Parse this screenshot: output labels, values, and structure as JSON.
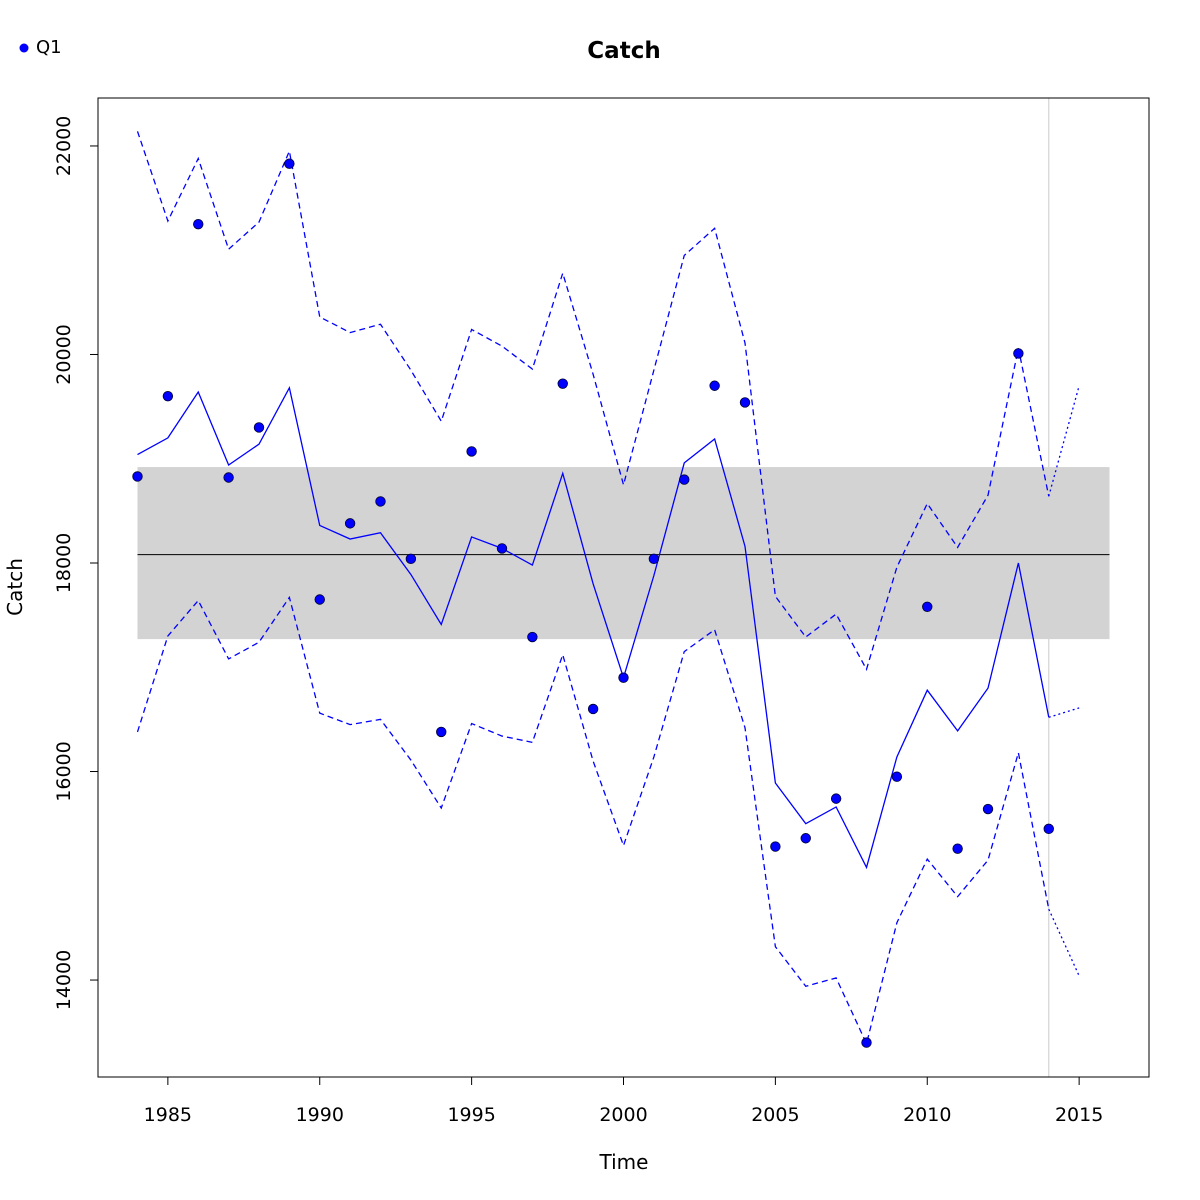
{
  "chart_data": {
    "type": "line",
    "title": "Catch",
    "xlabel": "Time",
    "ylabel": "Catch",
    "xlim": [
      1982.7,
      2017.3
    ],
    "ylim": [
      13070,
      22460
    ],
    "x_ticks": [
      1985,
      1990,
      1995,
      2000,
      2005,
      2010,
      2015
    ],
    "y_ticks": [
      14000,
      16000,
      18000,
      20000,
      22000
    ],
    "legend": {
      "position": "top-left",
      "entries": [
        {
          "label": "Q1",
          "marker": "filled-circle",
          "color": "#0000ff"
        }
      ]
    },
    "band": {
      "x_range": [
        1984,
        2016
      ],
      "y_range": [
        17270,
        18920
      ],
      "color": "#d3d3d3"
    },
    "hline": {
      "y": 18080,
      "x_range": [
        1984,
        2016
      ],
      "color": "#000000"
    },
    "vline": {
      "x": 2014,
      "color": "#d3d3d3"
    },
    "series": [
      {
        "name": "Q1",
        "kind": "points",
        "color": "#0000ff",
        "x": [
          1984,
          1985,
          1986,
          1987,
          1988,
          1989,
          1990,
          1991,
          1992,
          1993,
          1994,
          1995,
          1996,
          1997,
          1998,
          1999,
          2000,
          2001,
          2002,
          2003,
          2004,
          2005,
          2006,
          2007,
          2008,
          2009,
          2010,
          2011,
          2012,
          2013,
          2014
        ],
        "values": [
          18830,
          19600,
          21250,
          18820,
          19300,
          21830,
          17650,
          18380,
          18590,
          18040,
          16380,
          19070,
          18140,
          17290,
          19720,
          16600,
          16900,
          18040,
          18800,
          19700,
          19540,
          15280,
          15360,
          15740,
          13400,
          15950,
          17580,
          15260,
          15640,
          20010,
          15450
        ]
      },
      {
        "kind": "fitted-line",
        "color": "#0000ff",
        "style": "solid",
        "x": [
          1984,
          1985,
          1986,
          1987,
          1988,
          1989,
          1990,
          1991,
          1992,
          1993,
          1994,
          1995,
          1996,
          1997,
          1998,
          1999,
          2000,
          2001,
          2002,
          2003,
          2004,
          2005,
          2006,
          2007,
          2008,
          2009,
          2010,
          2011,
          2012,
          2013,
          2014
        ],
        "values": [
          19040,
          19200,
          19640,
          18940,
          19140,
          19680,
          18360,
          18230,
          18290,
          17890,
          17410,
          18250,
          18140,
          17980,
          18860,
          17800,
          16900,
          17880,
          18960,
          19190,
          18160,
          15890,
          15500,
          15660,
          15080,
          16140,
          16780,
          16390,
          16800,
          18000,
          16520
        ]
      },
      {
        "kind": "upper-bound",
        "color": "#0000ff",
        "style": "dashed",
        "x": [
          1984,
          1985,
          1986,
          1987,
          1988,
          1989,
          1990,
          1991,
          1992,
          1993,
          1994,
          1995,
          1996,
          1997,
          1998,
          1999,
          2000,
          2001,
          2002,
          2003,
          2004,
          2005,
          2006,
          2007,
          2008,
          2009,
          2010,
          2011,
          2012,
          2013,
          2014
        ],
        "values": [
          22140,
          21280,
          21880,
          21010,
          21270,
          21950,
          20360,
          20210,
          20290,
          19850,
          19360,
          20240,
          20080,
          19860,
          20780,
          19810,
          18750,
          19850,
          20950,
          21210,
          20110,
          17680,
          17290,
          17510,
          16980,
          17960,
          18570,
          18150,
          18650,
          20060,
          18640
        ]
      },
      {
        "kind": "lower-bound",
        "color": "#0000ff",
        "style": "dashed",
        "x": [
          1984,
          1985,
          1986,
          1987,
          1988,
          1989,
          1990,
          1991,
          1992,
          1993,
          1994,
          1995,
          1996,
          1997,
          1998,
          1999,
          2000,
          2001,
          2002,
          2003,
          2004,
          2005,
          2006,
          2007,
          2008,
          2009,
          2010,
          2011,
          2012,
          2013,
          2014
        ],
        "values": [
          16380,
          17300,
          17640,
          17080,
          17240,
          17670,
          16560,
          16450,
          16500,
          16110,
          15650,
          16460,
          16340,
          16280,
          17120,
          16100,
          15290,
          16140,
          17150,
          17360,
          16420,
          14320,
          13940,
          14020,
          13390,
          14550,
          15160,
          14800,
          15150,
          16180,
          14680
        ]
      },
      {
        "kind": "forecast-line",
        "color": "#0000ff",
        "style": "dotted",
        "x": [
          2014,
          2015
        ],
        "values": [
          16520,
          16610
        ]
      },
      {
        "kind": "forecast-upper",
        "color": "#0000ff",
        "style": "dotted",
        "x": [
          2014,
          2015
        ],
        "values": [
          18640,
          19700
        ]
      },
      {
        "kind": "forecast-lower",
        "color": "#0000ff",
        "style": "dotted",
        "x": [
          2014,
          2015
        ],
        "values": [
          14680,
          14040
        ]
      }
    ]
  }
}
